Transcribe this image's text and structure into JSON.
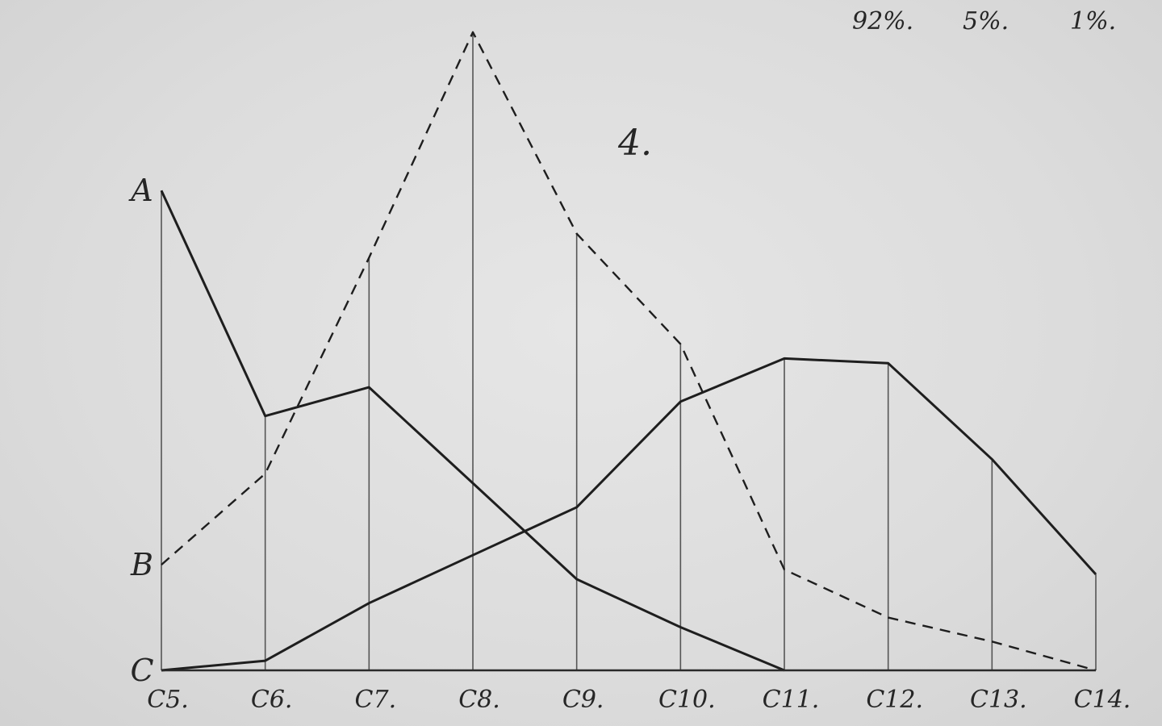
{
  "chart_data": {
    "type": "line",
    "title": "",
    "xlabel": "",
    "ylabel": "",
    "figure_number": "4.",
    "header_percentages": [
      "92%.",
      "5%.",
      "1%."
    ],
    "categories": [
      "C5.",
      "C6.",
      "C7.",
      "C8.",
      "C9.",
      "C10.",
      "C11.",
      "C12.",
      "C13.",
      "C14."
    ],
    "y_letter_labels": [
      {
        "text": "A",
        "y": 100
      },
      {
        "text": "B",
        "y": 22
      },
      {
        "text": "C",
        "y": 0
      }
    ],
    "ylim": [
      0,
      135
    ],
    "grid": "vertical",
    "series": [
      {
        "letter": "A",
        "style": "solid",
        "values": [
          100,
          53,
          59,
          39,
          19,
          9,
          0,
          null,
          null,
          null
        ]
      },
      {
        "letter": "B",
        "style": "dashed",
        "values": [
          22,
          41,
          86,
          133,
          91,
          68,
          21,
          11,
          6,
          0
        ]
      },
      {
        "letter": "C",
        "style": "solid",
        "values": [
          0,
          2,
          14,
          24,
          34,
          56,
          65,
          64,
          44,
          20
        ]
      }
    ]
  }
}
